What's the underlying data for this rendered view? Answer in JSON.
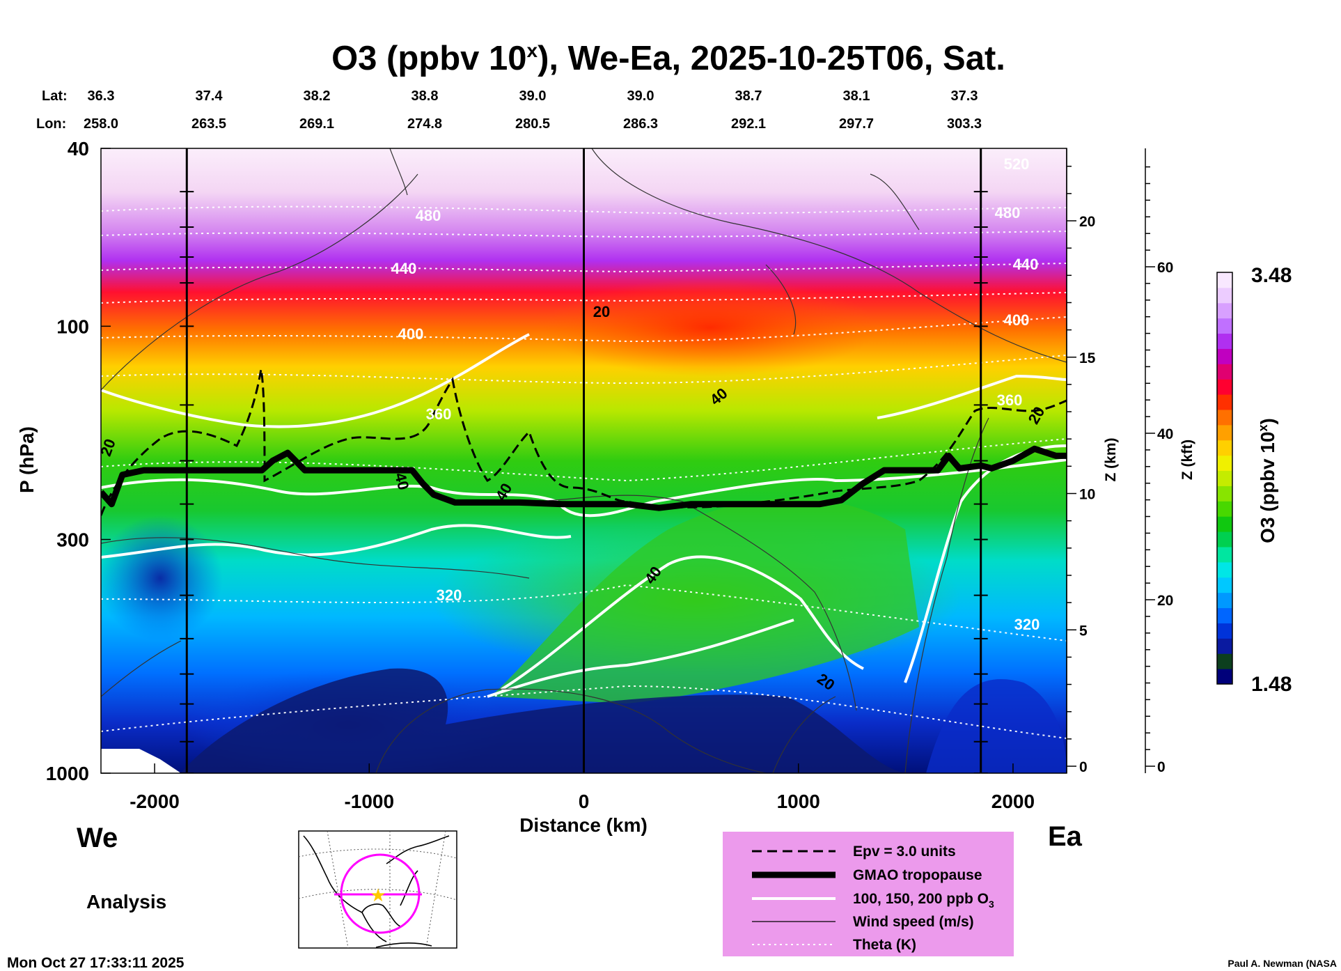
{
  "chart_data": {
    "type": "heatmap",
    "title_main": "O3 (ppbv 10",
    "title_sup": "x",
    "title_rest": "), We-Ea, 2025-10-25T06, Sat.",
    "lat_label": "Lat:",
    "lon_label": "Lon:",
    "lat_values": [
      "36.3",
      "37.4",
      "38.2",
      "38.8",
      "39.0",
      "39.0",
      "38.7",
      "38.1",
      "37.3"
    ],
    "lon_values": [
      "258.0",
      "263.5",
      "269.1",
      "274.8",
      "280.5",
      "286.3",
      "292.1",
      "297.7",
      "303.3"
    ],
    "x_axis": {
      "label": "Distance (km)",
      "range": [
        -2250,
        2250
      ],
      "ticks": [
        -2000,
        -1000,
        0,
        1000,
        2000
      ],
      "tick_labels": [
        "-2000",
        "-1000",
        "0",
        "1000",
        "2000"
      ]
    },
    "y_axis": {
      "label": "P (hPa)",
      "range": [
        1000,
        40
      ],
      "scale": "log",
      "ticks": [
        40,
        100,
        300,
        1000
      ],
      "tick_labels": [
        "40",
        "100",
        "300",
        "1000"
      ]
    },
    "z_km_axis": {
      "label": "Z (km)",
      "ticks": [
        0,
        5,
        10,
        15,
        20
      ],
      "tick_labels": [
        "0",
        "5",
        "10",
        "15",
        "20"
      ]
    },
    "z_kft_axis": {
      "label": "Z (kft)",
      "ticks": [
        0,
        20,
        40,
        60
      ],
      "tick_labels": [
        "0",
        "20",
        "40",
        "60"
      ]
    },
    "colorbar": {
      "label_main": "O3 (ppbv 10",
      "label_sup": "x",
      "label_rest": ")",
      "min": 1.48,
      "max": 3.48,
      "min_label": "1.48",
      "max_label": "3.48",
      "colors": [
        "#00007a",
        "#0c3f1e",
        "#0a1aa0",
        "#0033d9",
        "#0066ff",
        "#0099ff",
        "#00c8ff",
        "#00e6e6",
        "#00e6a0",
        "#00d050",
        "#10c810",
        "#48d800",
        "#88e400",
        "#c4ec00",
        "#f0f000",
        "#ffd000",
        "#ffa000",
        "#ff7000",
        "#ff3000",
        "#ff0030",
        "#e00070",
        "#c000c0",
        "#b030f0",
        "#c070ff",
        "#d8a0ff",
        "#ecccff",
        "#f8e8ff"
      ]
    },
    "vertical_lines_km": [
      -1850,
      0,
      1850
    ],
    "series": [
      {
        "name": "GMAO tropopause",
        "units": "hPa",
        "x": [
          -2250,
          -2200,
          -2150,
          -2050,
          -1800,
          -1500,
          -1450,
          -1380,
          -1300,
          -1200,
          -800,
          -750,
          -700,
          -600,
          -450,
          -300,
          -100,
          0,
          200,
          350,
          500,
          700,
          900,
          1100,
          1200,
          1300,
          1400,
          1500,
          1650,
          1700,
          1750,
          1850,
          1900,
          2000,
          2100,
          2200,
          2250
        ],
        "p": [
          235,
          250,
          215,
          210,
          210,
          210,
          200,
          192,
          210,
          210,
          210,
          225,
          238,
          248,
          248,
          248,
          250,
          250,
          250,
          255,
          250,
          250,
          250,
          250,
          245,
          225,
          210,
          210,
          210,
          195,
          208,
          205,
          208,
          200,
          188,
          195,
          195
        ]
      },
      {
        "name": "Theta (K)",
        "levels": [
          320,
          360,
          400,
          440,
          480,
          520
        ]
      },
      {
        "name": "Wind speed (m/s)",
        "levels": [
          20,
          40
        ]
      },
      {
        "name": "O3 contours (ppb)",
        "levels": [
          100,
          150,
          200
        ]
      }
    ],
    "contour_labels": [
      "520",
      "480",
      "480",
      "440",
      "440",
      "400",
      "400",
      "360",
      "360",
      "320",
      "320",
      "20",
      "20",
      "20",
      "20",
      "40",
      "40",
      "40",
      "40"
    ],
    "we_label": "We",
    "ea_label": "Ea",
    "analysis_label": "Analysis",
    "legend": [
      {
        "label": "Epv = 3.0 units",
        "style": "dashed"
      },
      {
        "label": "GMAO tropopause",
        "style": "thick"
      },
      {
        "label_main": "100, 150, 200 ppb O",
        "label_sub": "3",
        "style": "white"
      },
      {
        "label": "Wind speed (m/s)",
        "style": "thin"
      },
      {
        "label": "Theta (K)",
        "style": "dotted"
      }
    ],
    "timestamp": "Mon Oct 27 17:33:11 2025",
    "credit": "Paul A. Newman (NASA"
  }
}
